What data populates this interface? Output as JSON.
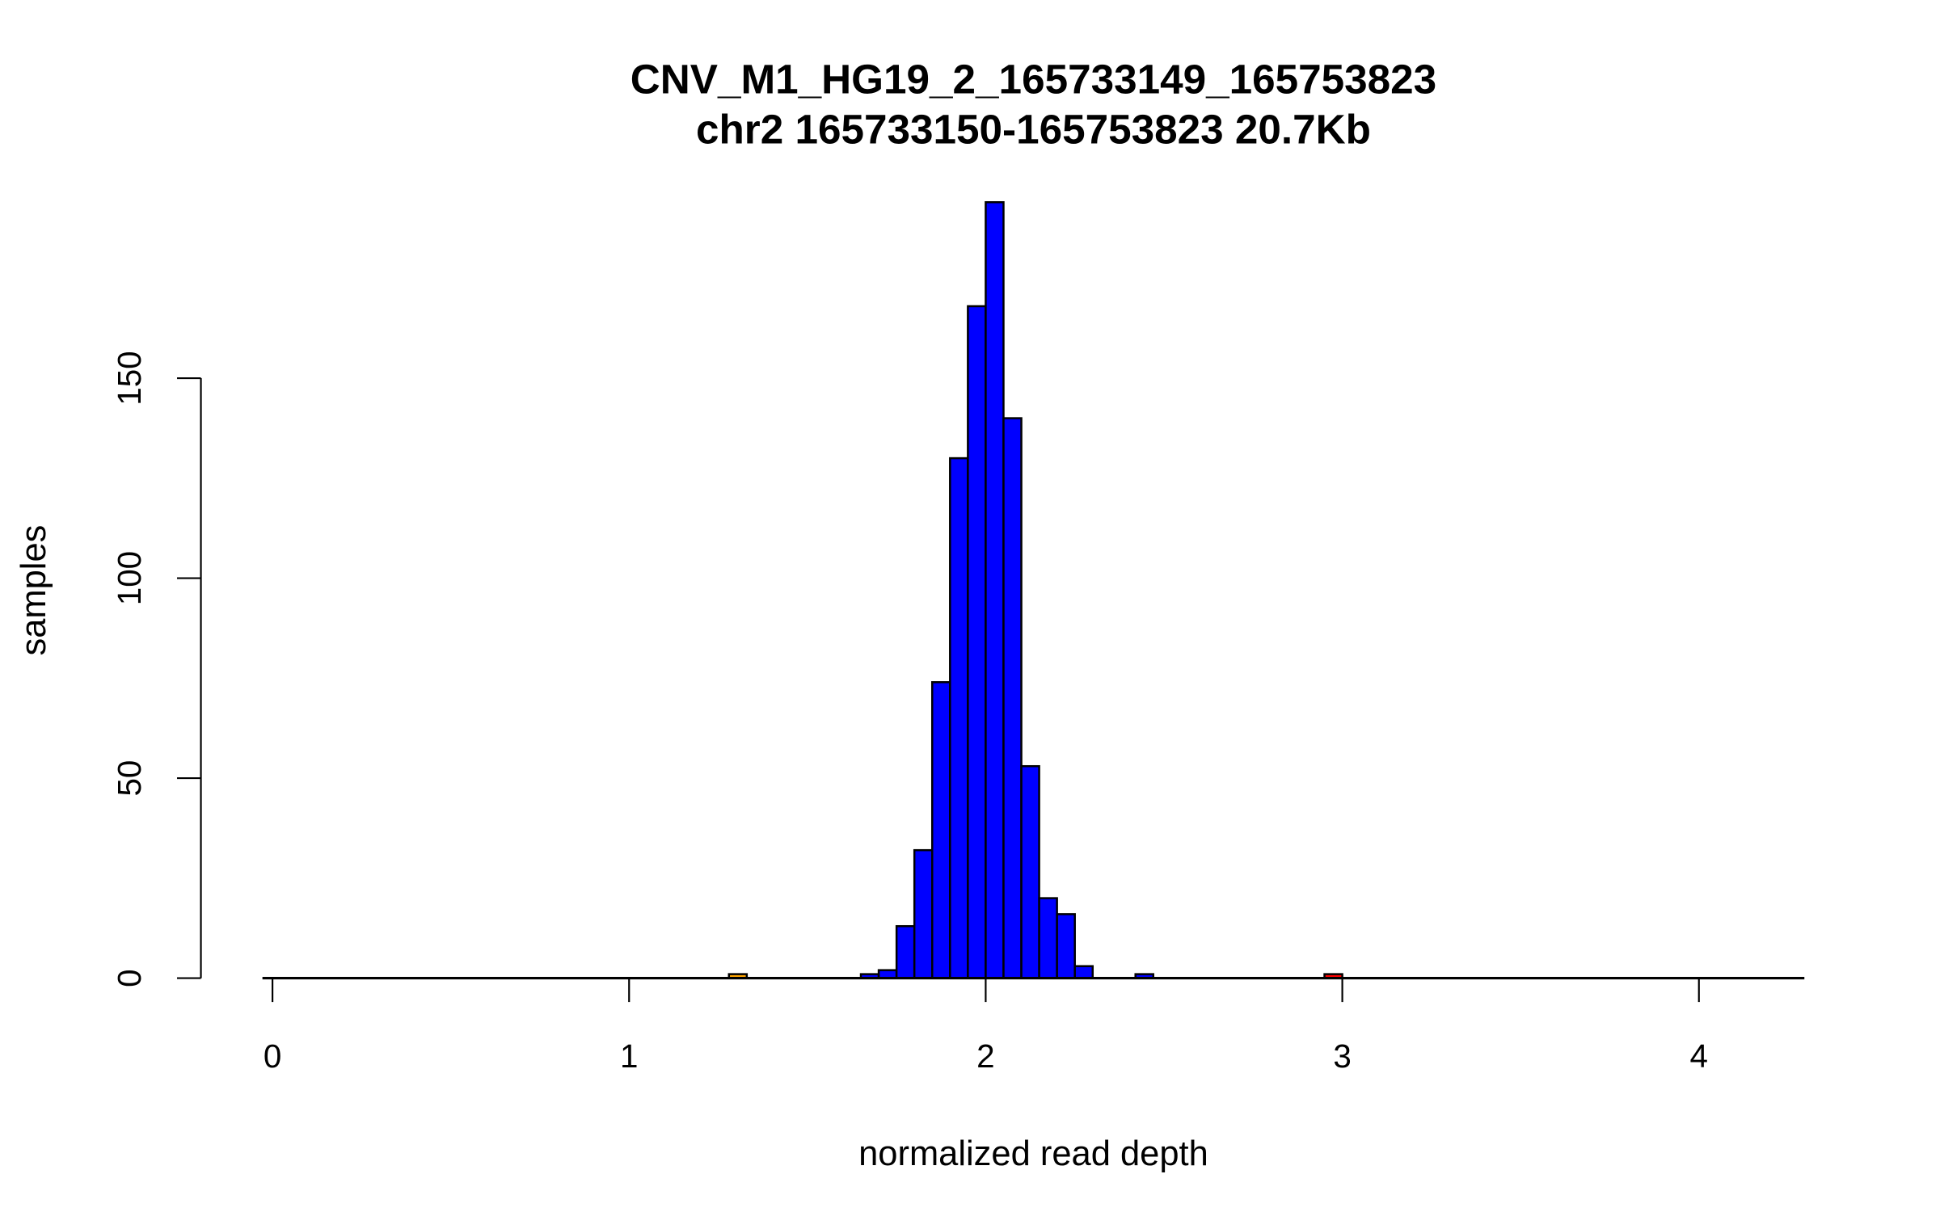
{
  "chart_data": {
    "type": "bar",
    "title": "CNV_M1_HG19_2_165733149_165753823",
    "subtitle": "chr2 165733150-165753823 20.7Kb",
    "xlabel": "normalized read depth",
    "ylabel": "samples",
    "xlim": [
      0,
      4.25
    ],
    "ylim": [
      0,
      194
    ],
    "xticks": [
      "0",
      "1",
      "2",
      "3",
      "4"
    ],
    "xtick_values": [
      0,
      1,
      2,
      3,
      4
    ],
    "yticks": [
      "0",
      "50",
      "100",
      "150"
    ],
    "ytick_values": [
      0,
      50,
      100,
      150
    ],
    "grid": false,
    "bin_width": 0.05,
    "series": [
      {
        "name": "main",
        "color": "#0000ff",
        "bins": [
          [
            1.65,
            1
          ],
          [
            1.7,
            2
          ],
          [
            1.75,
            13
          ],
          [
            1.8,
            32
          ],
          [
            1.85,
            74
          ],
          [
            1.9,
            130
          ],
          [
            1.95,
            168
          ],
          [
            2.0,
            194
          ],
          [
            2.05,
            140
          ],
          [
            2.1,
            53
          ],
          [
            2.15,
            20
          ],
          [
            2.2,
            16
          ],
          [
            2.25,
            3
          ],
          [
            2.42,
            1
          ]
        ]
      },
      {
        "name": "low",
        "color": "#ffa500",
        "bins": [
          [
            1.28,
            1
          ]
        ]
      },
      {
        "name": "high",
        "color": "#ff0000",
        "bins": [
          [
            2.95,
            1
          ]
        ]
      }
    ]
  }
}
